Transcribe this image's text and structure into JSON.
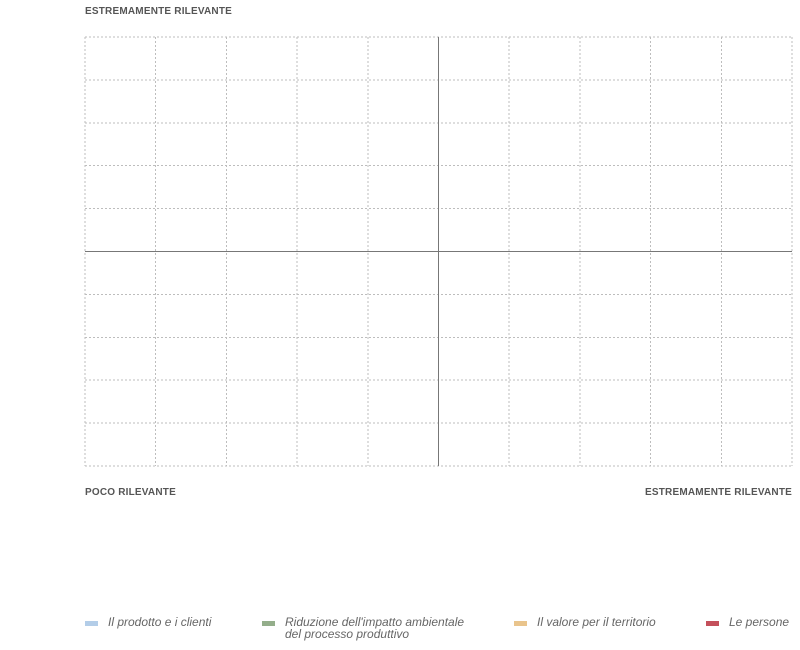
{
  "chart_data": {
    "type": "scatter",
    "title": "",
    "ylabel_top": "ESTREMAMENTE RILEVANTE",
    "xlabel_left": "POCO RILEVANTE",
    "xlabel_right": "ESTREMAMENTE RILEVANTE",
    "xlim": [
      0,
      10
    ],
    "ylim": [
      0,
      10
    ],
    "grid": true,
    "legend_position": "bottom",
    "series": [
      {
        "name": "Il prodotto e i clienti",
        "color": "#b3cde8",
        "points": []
      },
      {
        "name": "Riduzione dell'impatto ambientale\ndel processo produttivo",
        "color": "#94ae8b",
        "points": []
      },
      {
        "name": "Il valore per il territorio",
        "color": "#e9c48c",
        "points": []
      },
      {
        "name": "Le persone",
        "color": "#c4505b",
        "points": []
      }
    ]
  }
}
